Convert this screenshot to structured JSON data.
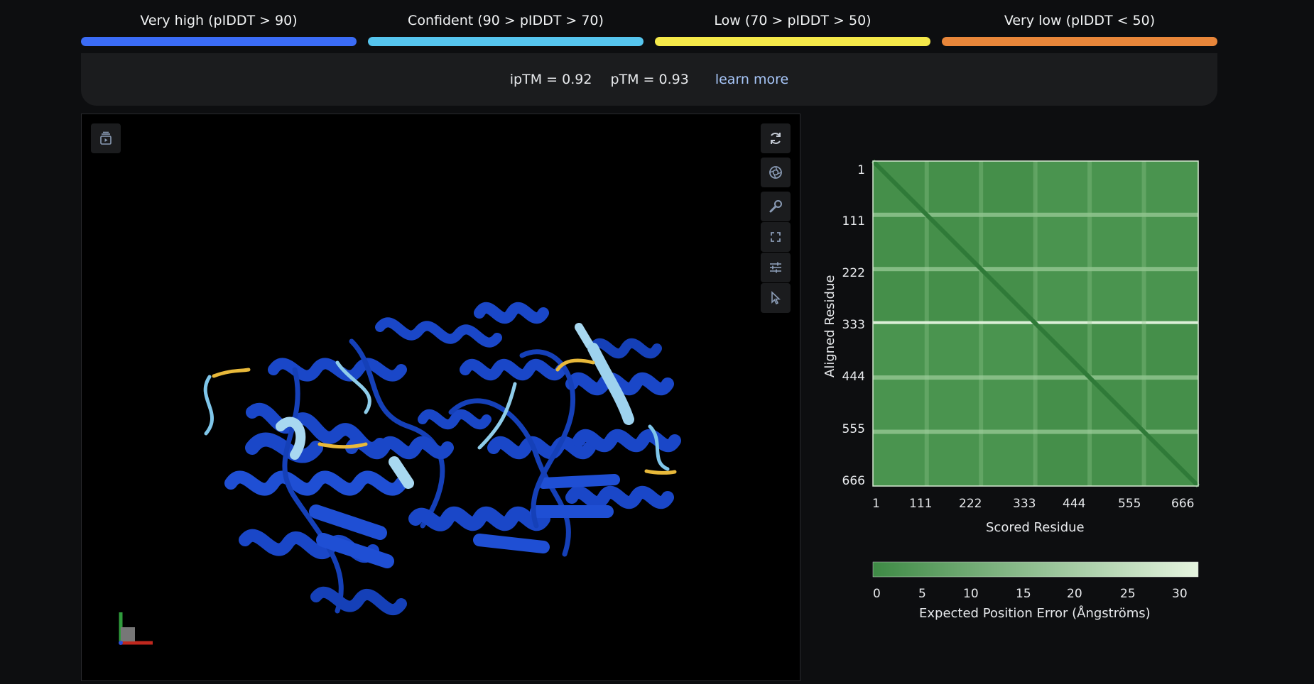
{
  "legend": [
    {
      "label": "Very high (pIDDT > 90)",
      "color": "#3b6cf6"
    },
    {
      "label": "Confident (90 > pIDDT > 70)",
      "color": "#56c5ee"
    },
    {
      "label": "Low (70 > pIDDT > 50)",
      "color": "#f5e94a"
    },
    {
      "label": "Very low (pIDDT < 50)",
      "color": "#e8863a"
    }
  ],
  "metrics": {
    "iptm": "ipTM = 0.92",
    "ptm": "pTM = 0.93",
    "learn_more": "learn more"
  },
  "viewer": {
    "tools": [
      "refresh-icon",
      "camera-icon",
      "wrench-icon",
      "fullscreen-icon",
      "sliders-icon",
      "cursor-icon"
    ],
    "panel_icon": "playback-panel-icon",
    "protein_color": "#1a47c8"
  },
  "chart_data": {
    "type": "heatmap",
    "x_ticks": [
      "1",
      "111",
      "222",
      "333",
      "444",
      "555",
      "666"
    ],
    "y_ticks": [
      "1",
      "111",
      "222",
      "333",
      "444",
      "555",
      "666"
    ],
    "xlabel": "Scored Residue",
    "ylabel": "Aligned Residue",
    "colorbar": {
      "ticks": [
        "0",
        "5",
        "10",
        "15",
        "20",
        "25",
        "30"
      ],
      "label": "Expected Position Error (Ångströms)",
      "range": [
        0,
        30
      ],
      "low_color": "#3e8a45",
      "high_color": "#e5f4df"
    },
    "range": [
      1,
      666
    ],
    "chain_boundary": 333,
    "bright_rows": [
      111,
      222,
      333,
      444,
      555
    ]
  }
}
